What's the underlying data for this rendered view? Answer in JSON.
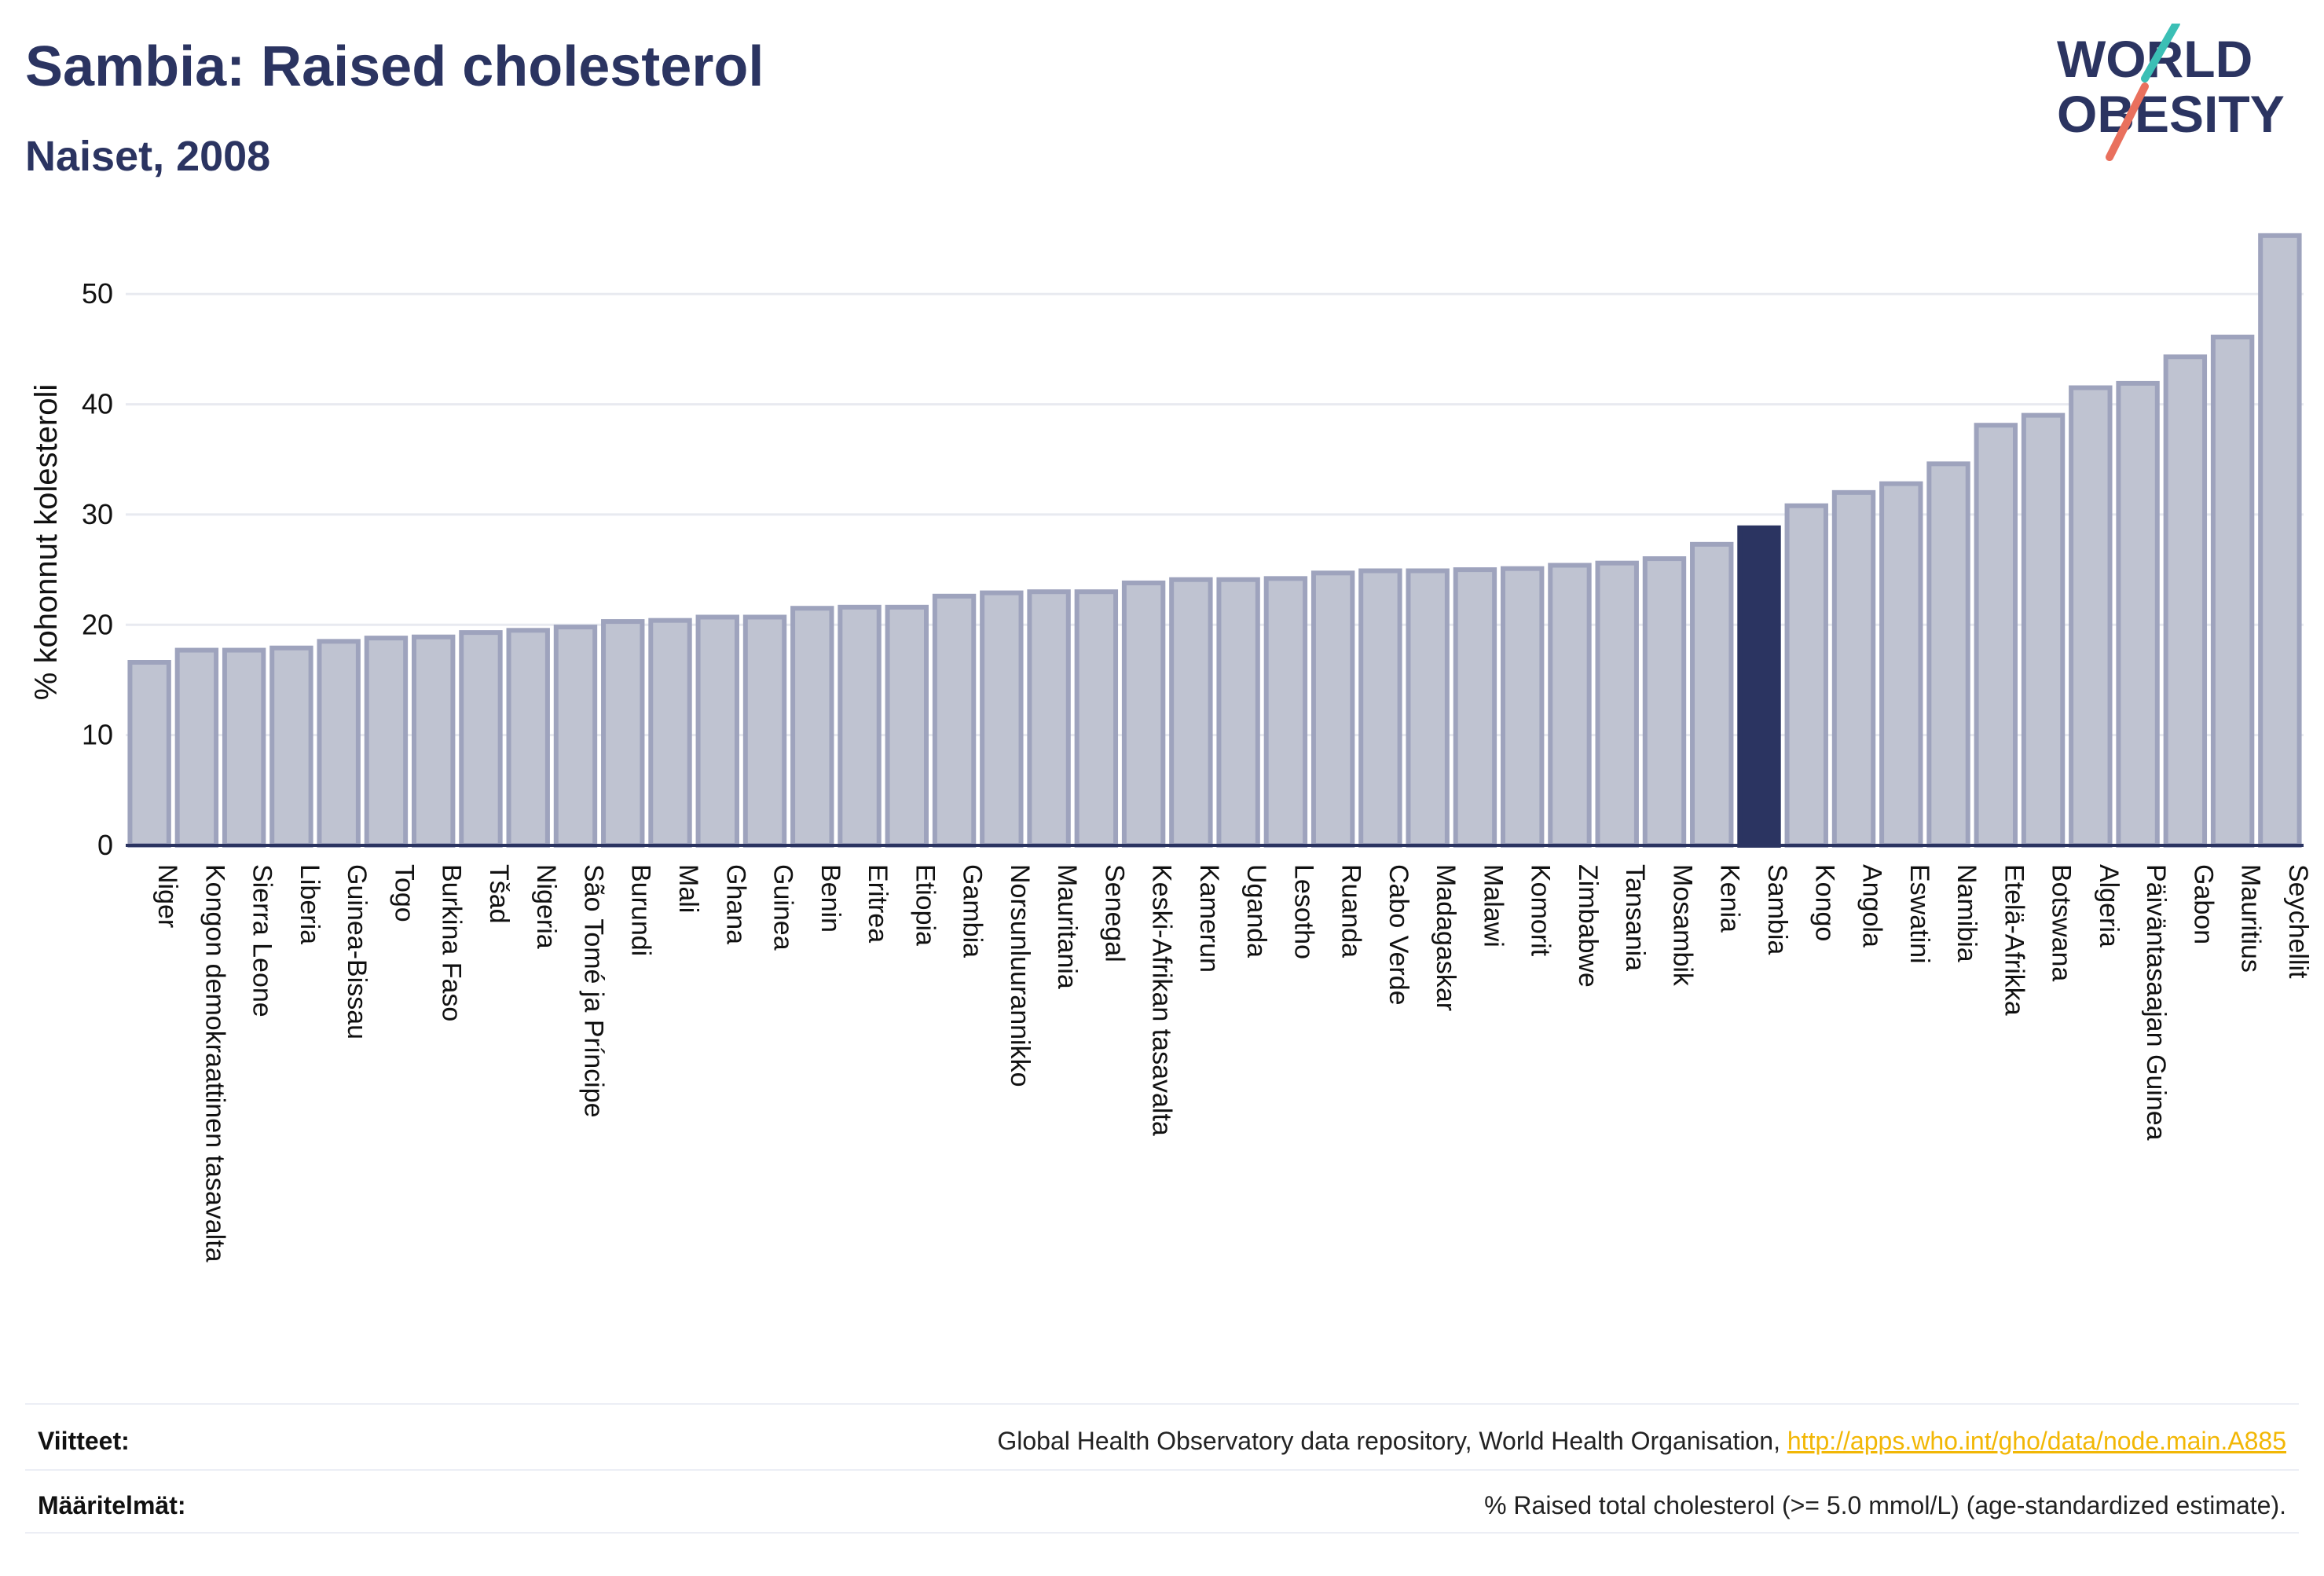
{
  "header": {
    "title": "Sambia: Raised cholesterol",
    "subtitle": "Naiset, 2008"
  },
  "logo": {
    "line1": "WORLD",
    "line2": "OBESITY"
  },
  "chart_data": {
    "type": "bar",
    "ylabel": "% kohonnut kolesteroli",
    "ylim": [
      0,
      56
    ],
    "yticks": [
      0,
      10,
      20,
      30,
      40,
      50
    ],
    "grid": true,
    "highlight": "Sambia",
    "colors": {
      "bar": "#bfc3d1",
      "bar_border": "#9ea3bd",
      "highlight": "#2b3461",
      "grid": "#e8eaf0"
    },
    "categories": [
      "Niger",
      "Kongon demokraattinen tasavalta",
      "Sierra Leone",
      "Liberia",
      "Guinea-Bissau",
      "Togo",
      "Burkina Faso",
      "Tšad",
      "Nigeria",
      "São Tomé ja Príncipe",
      "Burundi",
      "Mali",
      "Ghana",
      "Guinea",
      "Benin",
      "Eritrea",
      "Etiopia",
      "Gambia",
      "Norsunluurannikko",
      "Mauritania",
      "Senegal",
      "Keski-Afrikan tasavalta",
      "Kamerun",
      "Uganda",
      "Lesotho",
      "Ruanda",
      "Cabo Verde",
      "Madagaskar",
      "Malawi",
      "Komorit",
      "Zimbabwe",
      "Tansania",
      "Mosambik",
      "Kenia",
      "Sambia",
      "Kongo",
      "Angola",
      "Eswatini",
      "Namibia",
      "Etelä-Afrikka",
      "Botswana",
      "Algeria",
      "Päiväntasaajan Guinea",
      "Gabon",
      "Mauritius",
      "Seychellit"
    ],
    "values": [
      16.6,
      17.7,
      17.7,
      17.9,
      18.5,
      18.8,
      18.9,
      19.3,
      19.5,
      19.8,
      20.3,
      20.4,
      20.7,
      20.7,
      21.5,
      21.6,
      21.6,
      22.6,
      22.9,
      23.0,
      23.0,
      23.8,
      24.1,
      24.1,
      24.2,
      24.7,
      24.9,
      24.9,
      25.0,
      25.1,
      25.4,
      25.6,
      26.0,
      27.3,
      28.8,
      30.8,
      32.0,
      32.8,
      34.6,
      38.1,
      39.0,
      41.5,
      41.9,
      44.3,
      46.1,
      55.3
    ]
  },
  "footer": {
    "sources_label": "Viitteet:",
    "sources_text": "Global Health Observatory data repository, World Health Organisation, ",
    "sources_link": "http://apps.who.int/gho/data/node.main.A885",
    "definitions_label": "Määritelmät:",
    "definitions_text": "% Raised total cholesterol (>= 5.0 mmol/L) (age-standardized estimate)."
  }
}
